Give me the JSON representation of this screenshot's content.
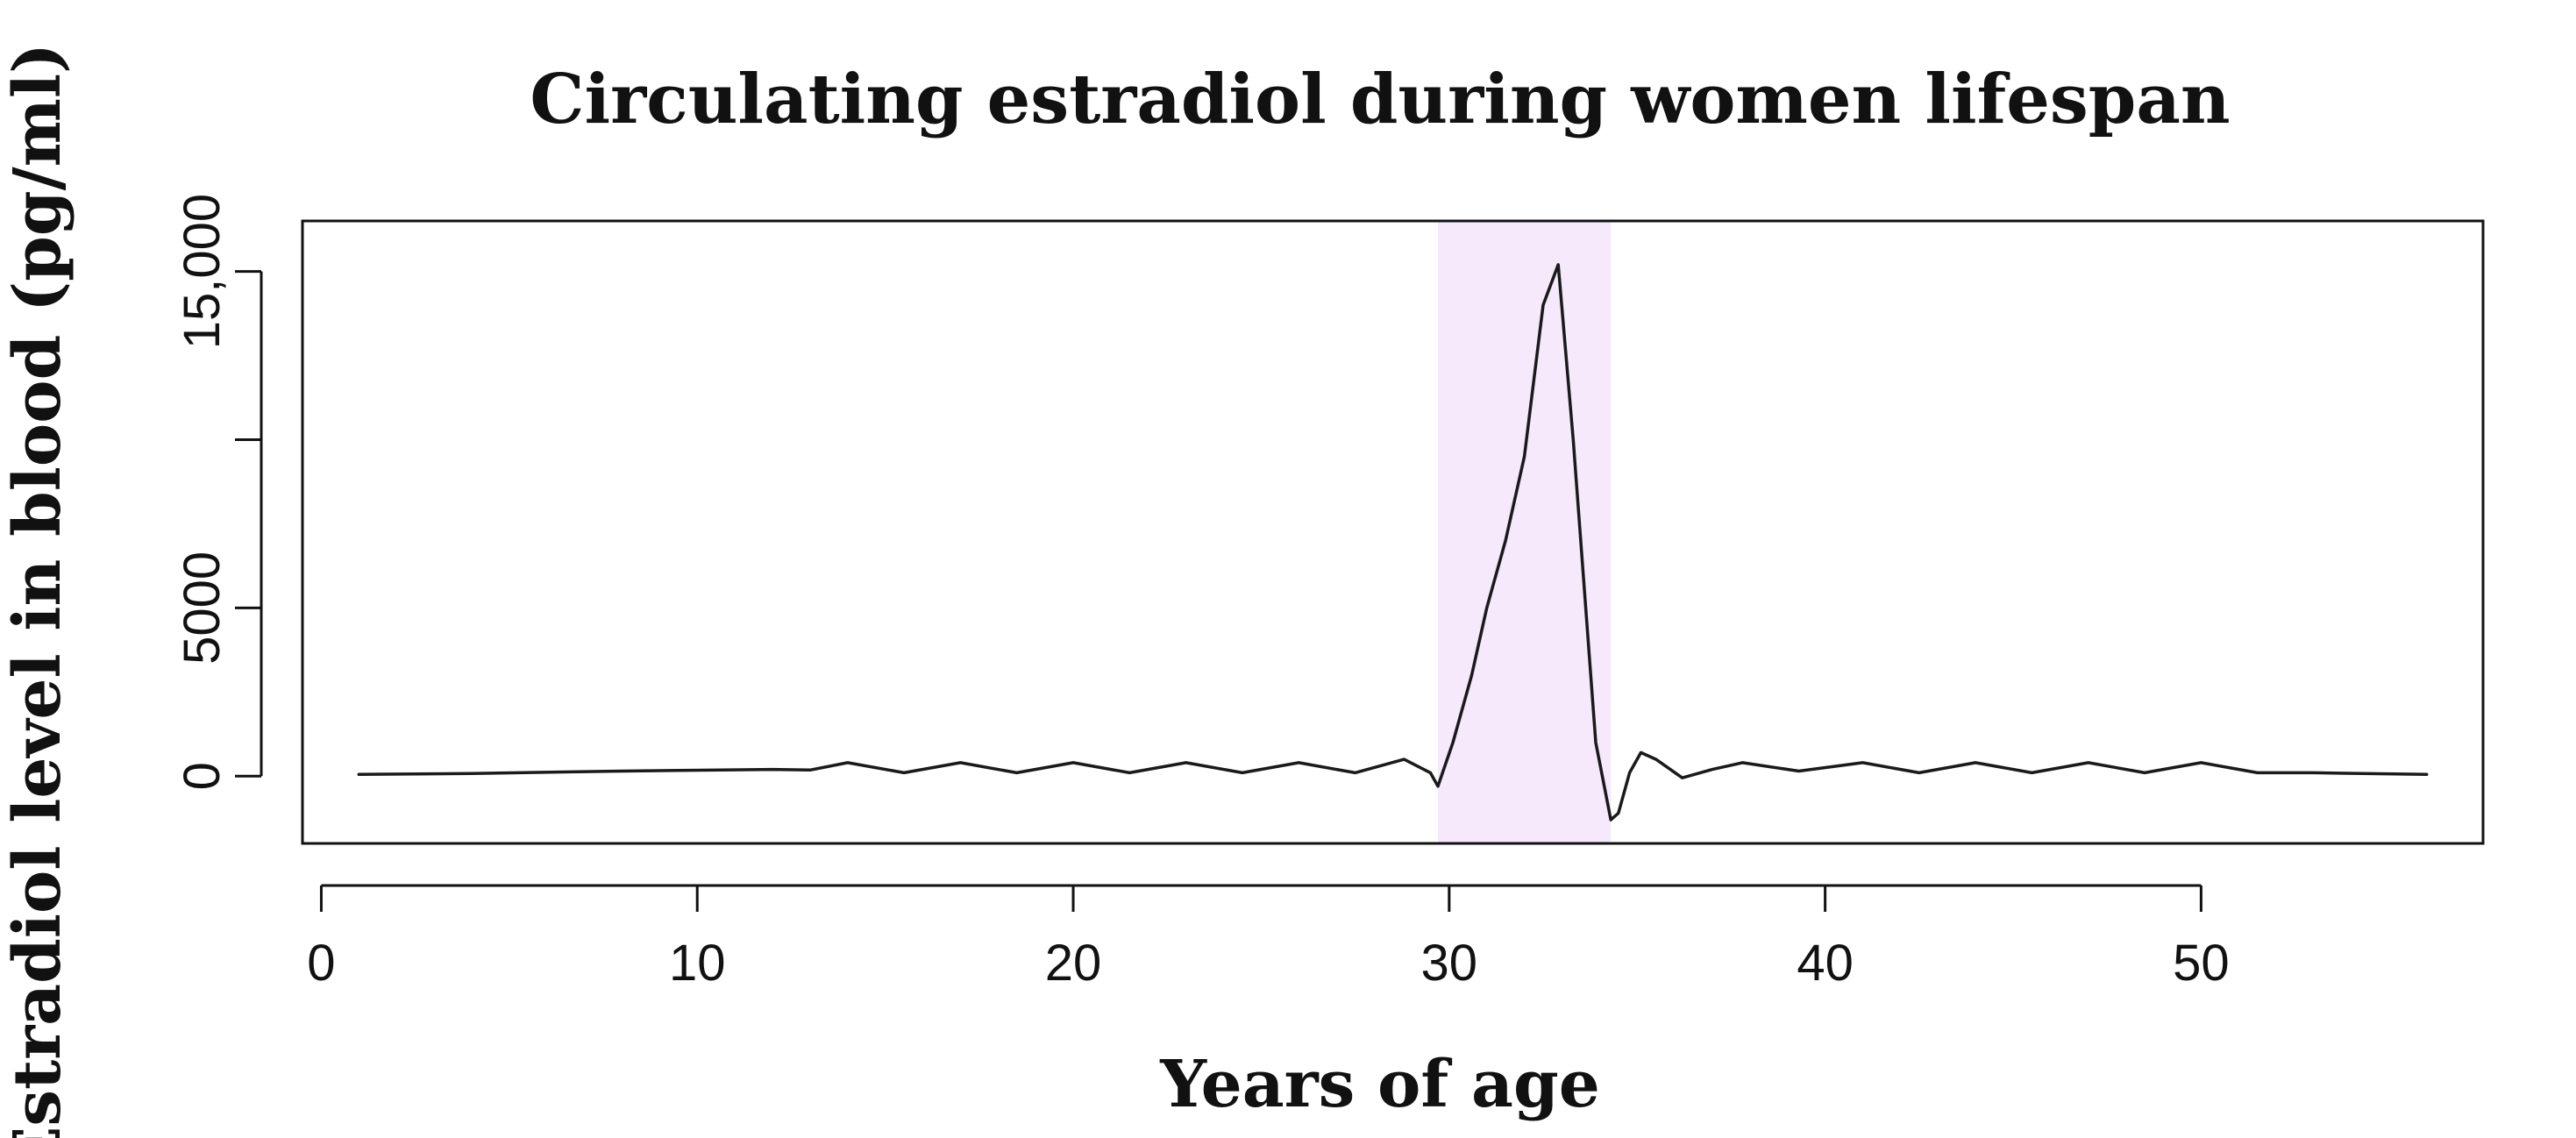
{
  "chart_data": {
    "type": "line",
    "title": "Circulating estradiol during women lifespan",
    "xlabel": "Years of age",
    "ylabel": "Estradiol level in blood (pg/ml)",
    "xlim": [
      -0.5,
      57.5
    ],
    "ylim": [
      -2000,
      16500
    ],
    "xticks": [
      0,
      10,
      20,
      30,
      40,
      50
    ],
    "xtick_labels": [
      "0",
      "10",
      "20",
      "30",
      "40",
      "50"
    ],
    "yticks": [
      0,
      5000,
      10000,
      15000
    ],
    "ytick_labels": [
      "0",
      "5000",
      "",
      "15,000"
    ],
    "grid": false,
    "legend": "none",
    "highlight_region": {
      "x_range": [
        29.7,
        34.3
      ],
      "color": "#f5e9fb"
    },
    "line_color": "#1a1a1a",
    "series": [
      {
        "x": [
          1,
          4,
          8,
          12,
          13,
          14,
          15.5,
          17,
          18.5,
          20,
          21.5,
          23,
          24.5,
          26,
          27.5,
          28.8,
          29.5,
          29.7,
          30.1,
          30.6,
          31,
          31.5,
          32,
          32.5,
          32.9,
          33.3,
          33.9,
          34.3,
          34.5,
          34.8,
          35.1,
          35.5,
          36.2,
          37,
          37.8,
          39.3,
          41,
          42.5,
          44,
          45.5,
          47,
          48.5,
          50,
          51.5,
          53,
          56
        ],
        "y": [
          50,
          80,
          150,
          200,
          180,
          400,
          100,
          400,
          100,
          400,
          100,
          400,
          100,
          400,
          100,
          500,
          100,
          -300,
          1000,
          3000,
          5000,
          7000,
          9500,
          14000,
          15200,
          10000,
          1000,
          -1300,
          -1100,
          100,
          700,
          500,
          -50,
          200,
          400,
          150,
          400,
          100,
          400,
          100,
          400,
          100,
          400,
          100,
          100,
          50
        ]
      }
    ]
  }
}
